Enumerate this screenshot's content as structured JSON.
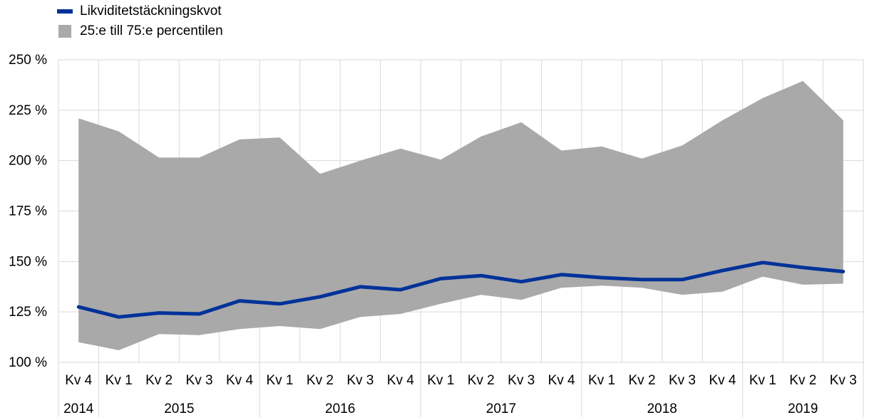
{
  "chart_data": {
    "type": "line",
    "x": [
      "Kv 4",
      "Kv 1",
      "Kv 2",
      "Kv 3",
      "Kv 4",
      "Kv 1",
      "Kv 2",
      "Kv 3",
      "Kv 4",
      "Kv 1",
      "Kv 2",
      "Kv 3",
      "Kv 4",
      "Kv 1",
      "Kv 2",
      "Kv 3",
      "Kv 4",
      "Kv 1",
      "Kv 2",
      "Kv 3"
    ],
    "years": [
      {
        "label": "2014",
        "count": 1
      },
      {
        "label": "2015",
        "count": 4
      },
      {
        "label": "2016",
        "count": 4
      },
      {
        "label": "2017",
        "count": 4
      },
      {
        "label": "2018",
        "count": 4
      },
      {
        "label": "2019",
        "count": 3
      }
    ],
    "series": [
      {
        "name": "Likviditetstäckningskvot",
        "type": "line",
        "color": "#003299",
        "values": [
          127.5,
          122.5,
          124.5,
          124.0,
          130.5,
          129.0,
          132.5,
          137.5,
          136.0,
          141.5,
          143.0,
          140.0,
          143.5,
          142.0,
          141.0,
          141.0,
          145.5,
          149.5,
          147.0,
          145.0
        ]
      },
      {
        "name": "25:e till 75:e percentilen",
        "type": "band",
        "color": "#a9a9a9",
        "lower": [
          110.0,
          106.0,
          114.0,
          113.5,
          116.5,
          118.0,
          116.5,
          122.5,
          124.0,
          129.0,
          133.5,
          131.0,
          137.0,
          138.0,
          137.0,
          133.5,
          135.0,
          142.5,
          138.5,
          139.0
        ],
        "upper": [
          221.0,
          214.5,
          201.5,
          201.5,
          210.5,
          211.5,
          193.5,
          200.0,
          206.0,
          200.5,
          212.0,
          219.0,
          205.0,
          207.0,
          201.0,
          207.5,
          220.0,
          231.0,
          239.5,
          220.0
        ]
      }
    ],
    "yticks": [
      "100 %",
      "125 %",
      "150 %",
      "175 %",
      "200 %",
      "225 %",
      "250 %"
    ],
    "ylim": [
      100,
      250
    ],
    "grid": true,
    "legend_position": "top-left"
  }
}
